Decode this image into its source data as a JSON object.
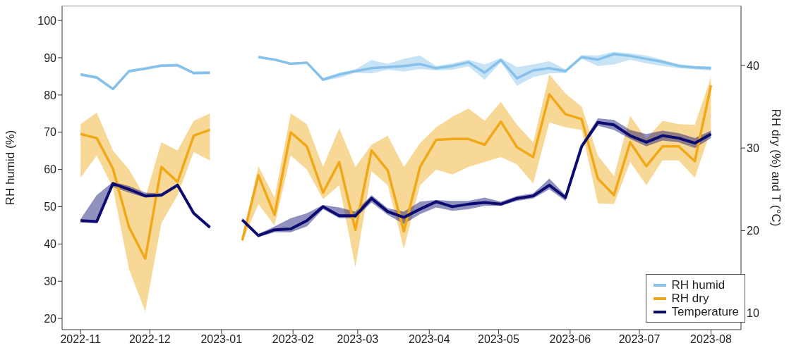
{
  "chart_data": {
    "type": "line",
    "ylabel": "RH humid (%)",
    "y2label": "RH dry (%) and T (°C)",
    "x": [
      "2022-11-01",
      "2022-11-08",
      "2022-11-15",
      "2022-11-22",
      "2022-11-29",
      "2022-12-06",
      "2022-12-13",
      "2022-12-20",
      "2022-12-27",
      "2023-01-03",
      "2023-01-10",
      "2023-01-17",
      "2023-01-24",
      "2023-01-31",
      "2023-02-07",
      "2023-02-14",
      "2023-02-21",
      "2023-02-28",
      "2023-03-07",
      "2023-03-14",
      "2023-03-21",
      "2023-03-28",
      "2023-04-04",
      "2023-04-11",
      "2023-04-18",
      "2023-04-25",
      "2023-05-02",
      "2023-05-09",
      "2023-05-16",
      "2023-05-23",
      "2023-05-30",
      "2023-06-06",
      "2023-06-13",
      "2023-06-20",
      "2023-06-27",
      "2023-07-04",
      "2023-07-11",
      "2023-07-18",
      "2023-07-25",
      "2023-08-01"
    ],
    "xlim": [
      "2022-10-24",
      "2023-08-14"
    ],
    "xticks": [
      "2022-11",
      "2022-12",
      "2023-01",
      "2023-02",
      "2023-03",
      "2023-04",
      "2023-05",
      "2023-06",
      "2023-07",
      "2023-08"
    ],
    "ylim": [
      17,
      104
    ],
    "yticks": [
      20,
      30,
      40,
      50,
      60,
      70,
      80,
      90,
      100
    ],
    "y2lim": [
      8,
      47.25
    ],
    "y2ticks": [
      10,
      20,
      30,
      40
    ],
    "legend": "bottom right",
    "marker": "none",
    "line_style": "solid",
    "series": [
      {
        "name": "RH humid",
        "color": "#85c1ea",
        "values": [
          85.5,
          84.7,
          81.6,
          86.4,
          87.1,
          87.9,
          88.0,
          85.9,
          86.0,
          null,
          null,
          90.2,
          89.5,
          88.4,
          88.7,
          84.1,
          85.5,
          86.4,
          87.2,
          87.5,
          87.8,
          88.3,
          87.2,
          87.8,
          88.8,
          86.0,
          89.4,
          84.5,
          86.6,
          87.2,
          86.4,
          90.2,
          89.5,
          91.0,
          90.5,
          89.7,
          88.9,
          87.8,
          87.4,
          87.2
        ],
        "lower": [
          85.1,
          84.3,
          81.2,
          86.0,
          86.7,
          87.5,
          87.6,
          85.5,
          85.6,
          null,
          null,
          89.9,
          89.2,
          88.1,
          88.4,
          83.8,
          84.6,
          86.0,
          85.8,
          86.8,
          86.3,
          87.0,
          86.6,
          86.8,
          87.7,
          84.1,
          88.8,
          82.5,
          84.8,
          85.8,
          85.9,
          89.7,
          87.8,
          88.2,
          89.5,
          88.5,
          87.8,
          87.2,
          86.9,
          86.6
        ],
        "upper": [
          85.9,
          85.1,
          82.0,
          86.8,
          87.5,
          88.3,
          88.4,
          86.3,
          86.4,
          null,
          null,
          90.5,
          89.8,
          88.7,
          89.0,
          84.6,
          86.0,
          86.9,
          89.4,
          88.4,
          89.7,
          90.6,
          87.8,
          88.5,
          89.5,
          88.2,
          89.9,
          87.5,
          88.2,
          89.1,
          86.9,
          90.7,
          90.6,
          91.6,
          91.2,
          90.6,
          89.5,
          88.3,
          87.8,
          87.7
        ]
      },
      {
        "name": "RH dry",
        "color": "#f0a818",
        "axis": "y2",
        "values": [
          31.7,
          31.2,
          27.5,
          20.4,
          16.6,
          27.7,
          25.9,
          31.5,
          32.2,
          null,
          18.8,
          26.7,
          21.9,
          31.9,
          30.2,
          24.6,
          28.3,
          20.1,
          29.7,
          27.3,
          19.9,
          27.7,
          31.0,
          31.1,
          31.1,
          30.4,
          33.2,
          30.1,
          28.9,
          36.5,
          34.1,
          33.5,
          26.3,
          24.3,
          30.7,
          27.8,
          30.2,
          30.2,
          28.4,
          37.6
        ],
        "lower": [
          26.4,
          29.1,
          25.2,
          15.3,
          10.2,
          20.9,
          24.3,
          29.5,
          28.5,
          null,
          18.6,
          23.2,
          20.6,
          29.1,
          27.4,
          23.8,
          25.5,
          15.6,
          27.2,
          25.5,
          17.8,
          25.5,
          27.4,
          26.8,
          27.7,
          28.3,
          28.9,
          28.0,
          25.7,
          33.1,
          32.5,
          32.2,
          23.3,
          23.2,
          28.3,
          25.5,
          28.5,
          28.5,
          26.4,
          32.2
        ],
        "upper": [
          32.9,
          34.3,
          29.7,
          27.4,
          24.0,
          30.7,
          29.7,
          33.3,
          34.2,
          null,
          19.0,
          27.8,
          24.0,
          34.2,
          32.9,
          27.7,
          32.4,
          27.7,
          30.4,
          31.5,
          27.7,
          30.6,
          32.5,
          33.8,
          34.8,
          33.3,
          35.6,
          32.8,
          30.7,
          38.9,
          36.6,
          35.0,
          29.1,
          26.6,
          33.9,
          31.1,
          33.3,
          32.9,
          32.8,
          38.6
        ]
      },
      {
        "name": "Temperature",
        "color": "#0b0b70",
        "axis": "y2",
        "values": [
          21.2,
          21.1,
          25.7,
          25.0,
          24.2,
          24.3,
          25.5,
          22.1,
          20.4,
          null,
          21.3,
          19.4,
          20.1,
          20.2,
          21.2,
          22.9,
          21.8,
          21.8,
          23.9,
          22.3,
          21.6,
          22.6,
          23.5,
          22.9,
          23.2,
          23.4,
          23.2,
          23.9,
          24.2,
          25.5,
          24.0,
          30.2,
          33.1,
          32.8,
          31.5,
          30.7,
          31.5,
          31.2,
          30.6,
          31.7
        ],
        "lower": [
          21.0,
          20.9,
          25.3,
          24.6,
          24.0,
          24.1,
          25.3,
          21.9,
          20.2,
          null,
          21.1,
          19.2,
          19.8,
          19.8,
          20.5,
          22.6,
          21.5,
          21.5,
          23.4,
          21.9,
          20.8,
          22.0,
          22.8,
          22.4,
          22.6,
          23.0,
          23.0,
          23.6,
          23.9,
          25.0,
          23.6,
          30.0,
          32.7,
          32.2,
          31.1,
          30.2,
          30.9,
          30.7,
          30.0,
          31.2
        ],
        "upper": [
          21.4,
          24.3,
          25.9,
          25.4,
          24.6,
          24.5,
          25.7,
          22.3,
          20.6,
          null,
          21.5,
          19.6,
          20.5,
          21.5,
          22.1,
          23.1,
          22.8,
          22.3,
          24.3,
          22.7,
          22.3,
          23.5,
          23.7,
          23.6,
          23.6,
          24.0,
          23.5,
          24.2,
          24.5,
          26.3,
          24.3,
          30.5,
          33.6,
          33.4,
          32.2,
          31.7,
          32.1,
          31.8,
          31.2,
          32.1
        ]
      }
    ]
  }
}
